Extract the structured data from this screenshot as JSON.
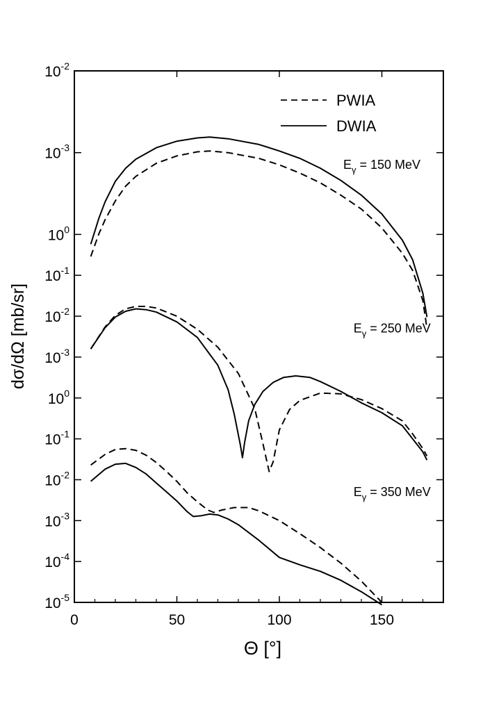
{
  "chart_data": {
    "type": "line",
    "title": "",
    "xlabel": "Θ  [°]",
    "ylabel": "dσ/dΩ  [mb/sr]",
    "xlim": [
      0,
      180
    ],
    "x_ticks": [
      "0",
      "50",
      "100",
      "150"
    ],
    "x_tick_values": [
      0,
      50,
      100,
      150
    ],
    "y_scale": "log, three stacked panels (offset decades)",
    "y_tick_labels": [
      {
        "base": "10",
        "exp": "-2"
      },
      {
        "base": "10",
        "exp": "-3"
      },
      {
        "base": "10",
        "exp": "0"
      },
      {
        "base": "10",
        "exp": "-1"
      },
      {
        "base": "10",
        "exp": "-2"
      },
      {
        "base": "10",
        "exp": "-3"
      },
      {
        "base": "10",
        "exp": "0"
      },
      {
        "base": "10",
        "exp": "-1"
      },
      {
        "base": "10",
        "exp": "-2"
      },
      {
        "base": "10",
        "exp": "-3"
      },
      {
        "base": "10",
        "exp": "-4"
      },
      {
        "base": "10",
        "exp": "-5"
      }
    ],
    "y_tick_decades": [
      8.0,
      7.0,
      6.0,
      5.5,
      5.0,
      4.5,
      4.0,
      3.5,
      3.0,
      2.5,
      2.0,
      1.5
    ],
    "legend": {
      "position": "top-right",
      "entries": [
        {
          "label": "PWIA",
          "style": "dashed"
        },
        {
          "label": "DWIA",
          "style": "solid"
        }
      ]
    },
    "annotations": [
      {
        "base": "E",
        "sub": "γ",
        "text": " = 150  MeV",
        "at": [
          150,
          6.8
        ]
      },
      {
        "base": "E",
        "sub": "γ",
        "text": " = 250  MeV",
        "at": [
          155,
          4.8
        ]
      },
      {
        "base": "E",
        "sub": "γ",
        "text": " = 350  MeV",
        "at": [
          155,
          2.8
        ]
      }
    ],
    "series": [
      {
        "name": "PWIA",
        "energy": "150 MeV",
        "style": "dashed",
        "x": [
          8,
          12,
          15,
          20,
          25,
          30,
          40,
          50,
          60,
          66,
          75,
          90,
          100,
          110,
          120,
          130,
          140,
          150,
          160,
          165,
          170,
          172
        ],
        "y": [
          5.73,
          6.01,
          6.18,
          6.41,
          6.59,
          6.71,
          6.87,
          6.96,
          7.01,
          7.02,
          7.0,
          6.93,
          6.85,
          6.75,
          6.63,
          6.48,
          6.31,
          6.08,
          5.77,
          5.56,
          5.19,
          4.85
        ]
      },
      {
        "name": "DWIA",
        "energy": "150 MeV",
        "style": "solid",
        "x": [
          8,
          12,
          15,
          20,
          25,
          30,
          40,
          50,
          60,
          66,
          75,
          90,
          100,
          110,
          120,
          130,
          140,
          150,
          160,
          165,
          170,
          172
        ],
        "y": [
          5.88,
          6.2,
          6.4,
          6.65,
          6.81,
          6.92,
          7.06,
          7.14,
          7.18,
          7.19,
          7.17,
          7.1,
          7.02,
          6.93,
          6.81,
          6.66,
          6.48,
          6.25,
          5.93,
          5.69,
          5.28,
          4.99
        ]
      },
      {
        "name": "PWIA",
        "energy": "250 MeV",
        "style": "dashed",
        "x": [
          8,
          15,
          20,
          25,
          30,
          35,
          40,
          50,
          60,
          70,
          80,
          88,
          92,
          95,
          97,
          100,
          105,
          110,
          120,
          130,
          140,
          150,
          160,
          165,
          170,
          172
        ],
        "y": [
          4.6,
          4.87,
          5.01,
          5.09,
          5.12,
          5.12,
          5.1,
          5.0,
          4.84,
          4.62,
          4.3,
          3.87,
          3.44,
          3.1,
          3.22,
          3.61,
          3.86,
          3.97,
          4.06,
          4.05,
          3.98,
          3.87,
          3.72,
          3.56,
          3.38,
          3.29
        ]
      },
      {
        "name": "DWIA",
        "energy": "250 MeV",
        "style": "solid",
        "x": [
          8,
          15,
          20,
          25,
          30,
          35,
          40,
          50,
          60,
          70,
          75,
          78,
          81,
          82,
          83,
          85,
          88,
          92,
          97,
          102,
          108,
          115,
          120,
          130,
          140,
          150,
          160,
          165,
          170,
          172
        ],
        "y": [
          4.6,
          4.86,
          4.99,
          5.06,
          5.09,
          5.08,
          5.05,
          4.93,
          4.74,
          4.4,
          4.1,
          3.8,
          3.42,
          3.27,
          3.45,
          3.72,
          3.92,
          4.08,
          4.19,
          4.25,
          4.27,
          4.25,
          4.2,
          4.08,
          3.94,
          3.82,
          3.66,
          3.5,
          3.34,
          3.24
        ]
      },
      {
        "name": "PWIA",
        "energy": "350 MeV",
        "style": "dashed",
        "x": [
          8,
          15,
          20,
          25,
          30,
          35,
          40,
          45,
          50,
          55,
          60,
          65,
          68,
          72,
          78,
          85,
          90,
          100,
          110,
          120,
          130,
          140,
          150
        ],
        "y": [
          3.18,
          3.31,
          3.37,
          3.38,
          3.36,
          3.3,
          3.21,
          3.1,
          2.98,
          2.84,
          2.73,
          2.63,
          2.6,
          2.63,
          2.66,
          2.66,
          2.62,
          2.5,
          2.34,
          2.17,
          1.98,
          1.76,
          1.5
        ]
      },
      {
        "name": "DWIA",
        "energy": "350 MeV",
        "style": "solid",
        "x": [
          8,
          15,
          20,
          25,
          30,
          35,
          40,
          45,
          50,
          55,
          58,
          62,
          66,
          70,
          75,
          80,
          90,
          100,
          110,
          120,
          130,
          140,
          150
        ],
        "y": [
          2.98,
          3.13,
          3.19,
          3.2,
          3.15,
          3.07,
          2.96,
          2.85,
          2.74,
          2.61,
          2.55,
          2.56,
          2.58,
          2.57,
          2.52,
          2.45,
          2.26,
          2.05,
          1.96,
          1.88,
          1.77,
          1.63,
          1.47
        ]
      }
    ]
  }
}
